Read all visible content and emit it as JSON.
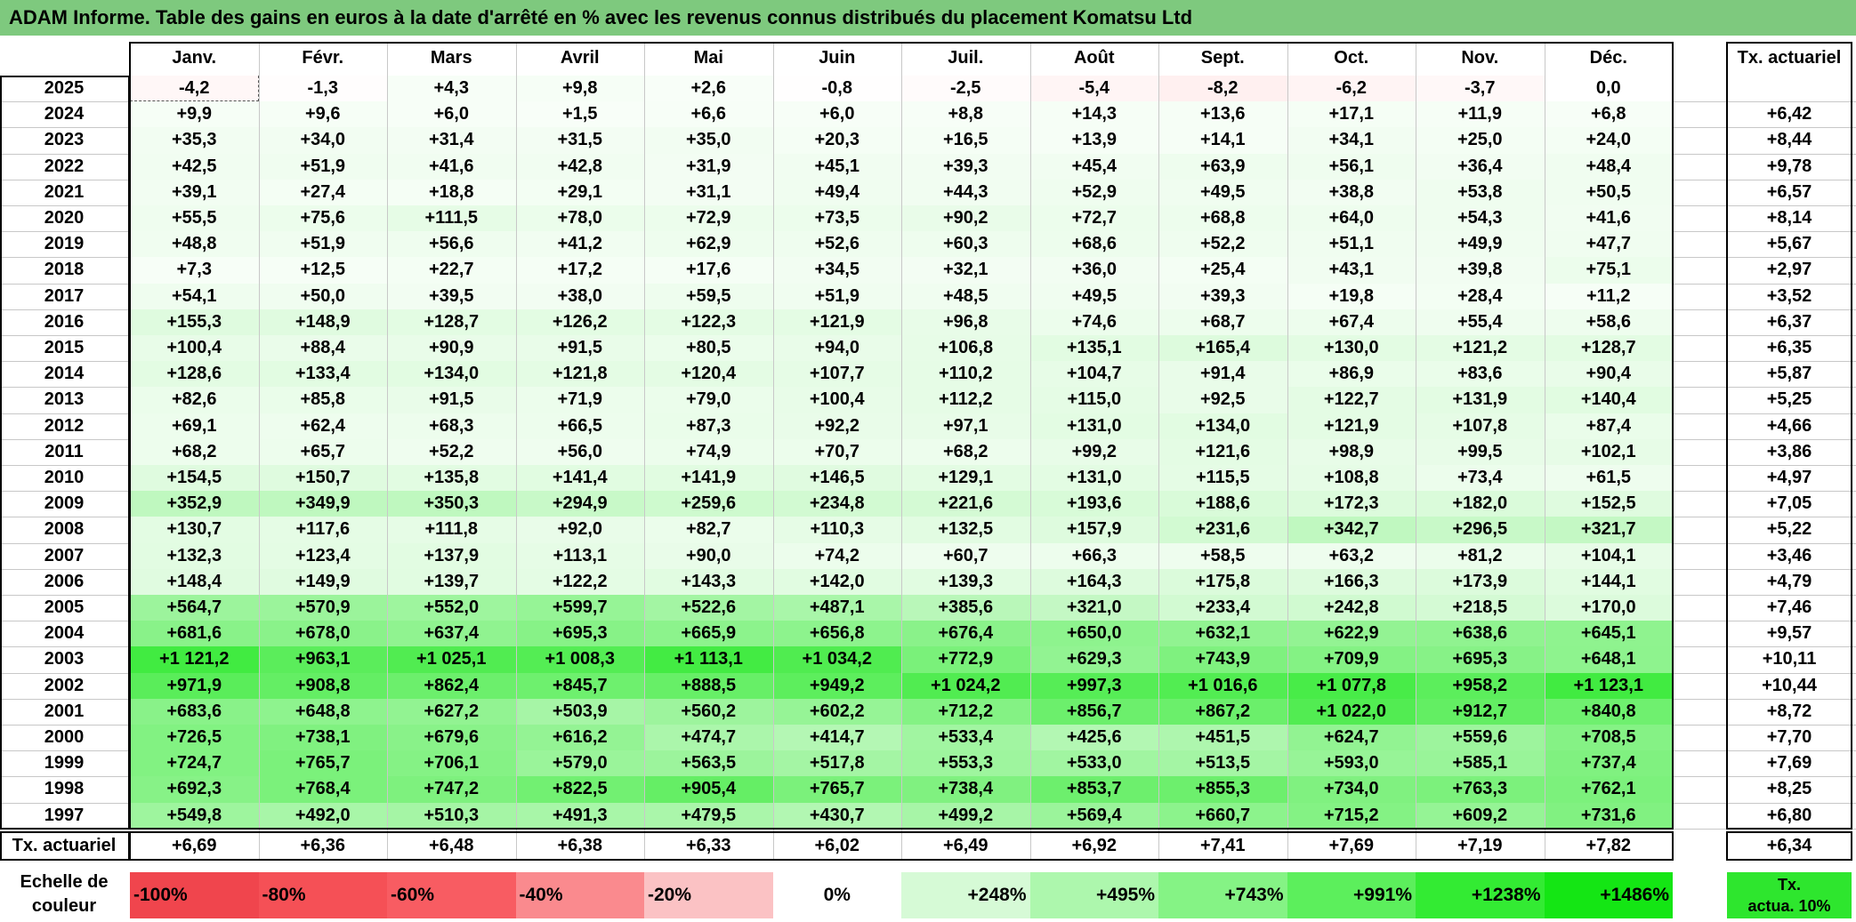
{
  "title": "ADAM Informe. Table des gains en euros à la date d'arrêté en % avec les revenus connus distribués du placement Komatsu Ltd",
  "months": [
    "Janv.",
    "Févr.",
    "Mars",
    "Avril",
    "Mai",
    "Juin",
    "Juil.",
    "Août",
    "Sept.",
    "Oct.",
    "Nov.",
    "Déc."
  ],
  "rate_header": "Tx. actuariel",
  "rows": [
    {
      "year": "2025",
      "values": [
        "-4,2",
        "-1,3",
        "+4,3",
        "+9,8",
        "+2,6",
        "-0,8",
        "-2,5",
        "-5,4",
        "-8,2",
        "-6,2",
        "-3,7",
        "0,0"
      ],
      "rate": ""
    },
    {
      "year": "2024",
      "values": [
        "+9,9",
        "+9,6",
        "+6,0",
        "+1,5",
        "+6,6",
        "+6,0",
        "+8,8",
        "+14,3",
        "+13,6",
        "+17,1",
        "+11,9",
        "+6,8"
      ],
      "rate": "+6,42"
    },
    {
      "year": "2023",
      "values": [
        "+35,3",
        "+34,0",
        "+31,4",
        "+31,5",
        "+35,0",
        "+20,3",
        "+16,5",
        "+13,9",
        "+14,1",
        "+34,1",
        "+25,0",
        "+24,0"
      ],
      "rate": "+8,44"
    },
    {
      "year": "2022",
      "values": [
        "+42,5",
        "+51,9",
        "+41,6",
        "+42,8",
        "+31,9",
        "+45,1",
        "+39,3",
        "+45,4",
        "+63,9",
        "+56,1",
        "+36,4",
        "+48,4"
      ],
      "rate": "+9,78"
    },
    {
      "year": "2021",
      "values": [
        "+39,1",
        "+27,4",
        "+18,8",
        "+29,1",
        "+31,1",
        "+49,4",
        "+44,3",
        "+52,9",
        "+49,5",
        "+38,8",
        "+53,8",
        "+50,5"
      ],
      "rate": "+6,57"
    },
    {
      "year": "2020",
      "values": [
        "+55,5",
        "+75,6",
        "+111,5",
        "+78,0",
        "+72,9",
        "+73,5",
        "+90,2",
        "+72,7",
        "+68,8",
        "+64,0",
        "+54,3",
        "+41,6"
      ],
      "rate": "+8,14"
    },
    {
      "year": "2019",
      "values": [
        "+48,8",
        "+51,9",
        "+56,6",
        "+41,2",
        "+62,9",
        "+52,6",
        "+60,3",
        "+68,6",
        "+52,2",
        "+51,1",
        "+49,9",
        "+47,7"
      ],
      "rate": "+5,67"
    },
    {
      "year": "2018",
      "values": [
        "+7,3",
        "+12,5",
        "+22,7",
        "+17,2",
        "+17,6",
        "+34,5",
        "+32,1",
        "+36,0",
        "+25,4",
        "+43,1",
        "+39,8",
        "+75,1"
      ],
      "rate": "+2,97"
    },
    {
      "year": "2017",
      "values": [
        "+54,1",
        "+50,0",
        "+39,5",
        "+38,0",
        "+59,5",
        "+51,9",
        "+48,5",
        "+49,5",
        "+39,3",
        "+19,8",
        "+28,4",
        "+11,2"
      ],
      "rate": "+3,52"
    },
    {
      "year": "2016",
      "values": [
        "+155,3",
        "+148,9",
        "+128,7",
        "+126,2",
        "+122,3",
        "+121,9",
        "+96,8",
        "+74,6",
        "+68,7",
        "+67,4",
        "+55,4",
        "+58,6"
      ],
      "rate": "+6,37"
    },
    {
      "year": "2015",
      "values": [
        "+100,4",
        "+88,4",
        "+90,9",
        "+91,5",
        "+80,5",
        "+94,0",
        "+106,8",
        "+135,1",
        "+165,4",
        "+130,0",
        "+121,2",
        "+128,7"
      ],
      "rate": "+6,35"
    },
    {
      "year": "2014",
      "values": [
        "+128,6",
        "+133,4",
        "+134,0",
        "+121,8",
        "+120,4",
        "+107,7",
        "+110,2",
        "+104,7",
        "+91,4",
        "+86,9",
        "+83,6",
        "+90,4"
      ],
      "rate": "+5,87"
    },
    {
      "year": "2013",
      "values": [
        "+82,6",
        "+85,8",
        "+91,5",
        "+71,9",
        "+79,0",
        "+100,4",
        "+112,2",
        "+115,0",
        "+92,5",
        "+122,7",
        "+131,9",
        "+140,4"
      ],
      "rate": "+5,25"
    },
    {
      "year": "2012",
      "values": [
        "+69,1",
        "+62,4",
        "+68,3",
        "+66,5",
        "+87,3",
        "+92,2",
        "+97,1",
        "+131,0",
        "+134,0",
        "+121,9",
        "+107,8",
        "+87,4"
      ],
      "rate": "+4,66"
    },
    {
      "year": "2011",
      "values": [
        "+68,2",
        "+65,7",
        "+52,2",
        "+56,0",
        "+74,9",
        "+70,7",
        "+68,2",
        "+99,2",
        "+121,6",
        "+98,9",
        "+99,5",
        "+102,1"
      ],
      "rate": "+3,86"
    },
    {
      "year": "2010",
      "values": [
        "+154,5",
        "+150,7",
        "+135,8",
        "+141,4",
        "+141,9",
        "+146,5",
        "+129,1",
        "+131,0",
        "+115,5",
        "+108,8",
        "+73,4",
        "+61,5"
      ],
      "rate": "+4,97"
    },
    {
      "year": "2009",
      "values": [
        "+352,9",
        "+349,9",
        "+350,3",
        "+294,9",
        "+259,6",
        "+234,8",
        "+221,6",
        "+193,6",
        "+188,6",
        "+172,3",
        "+182,0",
        "+152,5"
      ],
      "rate": "+7,05"
    },
    {
      "year": "2008",
      "values": [
        "+130,7",
        "+117,6",
        "+111,8",
        "+92,0",
        "+82,7",
        "+110,3",
        "+132,5",
        "+157,9",
        "+231,6",
        "+342,7",
        "+296,5",
        "+321,7"
      ],
      "rate": "+5,22"
    },
    {
      "year": "2007",
      "values": [
        "+132,3",
        "+123,4",
        "+137,9",
        "+113,1",
        "+90,0",
        "+74,2",
        "+60,7",
        "+66,3",
        "+58,5",
        "+63,2",
        "+81,2",
        "+104,1"
      ],
      "rate": "+3,46"
    },
    {
      "year": "2006",
      "values": [
        "+148,4",
        "+149,9",
        "+139,7",
        "+122,2",
        "+143,3",
        "+142,0",
        "+139,3",
        "+164,3",
        "+175,8",
        "+166,3",
        "+173,9",
        "+144,1"
      ],
      "rate": "+4,79"
    },
    {
      "year": "2005",
      "values": [
        "+564,7",
        "+570,9",
        "+552,0",
        "+599,7",
        "+522,6",
        "+487,1",
        "+385,6",
        "+321,0",
        "+233,4",
        "+242,8",
        "+218,5",
        "+170,0"
      ],
      "rate": "+7,46"
    },
    {
      "year": "2004",
      "values": [
        "+681,6",
        "+678,0",
        "+637,4",
        "+695,3",
        "+665,9",
        "+656,8",
        "+676,4",
        "+650,0",
        "+632,1",
        "+622,9",
        "+638,6",
        "+645,1"
      ],
      "rate": "+9,57"
    },
    {
      "year": "2003",
      "values": [
        "+1 121,2",
        "+963,1",
        "+1 025,1",
        "+1 008,3",
        "+1 113,1",
        "+1 034,2",
        "+772,9",
        "+629,3",
        "+743,9",
        "+709,9",
        "+695,3",
        "+648,1"
      ],
      "rate": "+10,11"
    },
    {
      "year": "2002",
      "values": [
        "+971,9",
        "+908,8",
        "+862,4",
        "+845,7",
        "+888,5",
        "+949,2",
        "+1 024,2",
        "+997,3",
        "+1 016,6",
        "+1 077,8",
        "+958,2",
        "+1 123,1"
      ],
      "rate": "+10,44"
    },
    {
      "year": "2001",
      "values": [
        "+683,6",
        "+648,8",
        "+627,2",
        "+503,9",
        "+560,2",
        "+602,2",
        "+712,2",
        "+856,7",
        "+867,2",
        "+1 022,0",
        "+912,7",
        "+840,8"
      ],
      "rate": "+8,72"
    },
    {
      "year": "2000",
      "values": [
        "+726,5",
        "+738,1",
        "+679,6",
        "+616,2",
        "+474,7",
        "+414,7",
        "+533,4",
        "+425,6",
        "+451,5",
        "+624,7",
        "+559,6",
        "+708,5"
      ],
      "rate": "+7,70"
    },
    {
      "year": "1999",
      "values": [
        "+724,7",
        "+765,7",
        "+706,1",
        "+579,0",
        "+563,5",
        "+517,8",
        "+553,3",
        "+533,0",
        "+513,5",
        "+593,0",
        "+585,1",
        "+737,4"
      ],
      "rate": "+7,69"
    },
    {
      "year": "1998",
      "values": [
        "+692,3",
        "+768,4",
        "+747,2",
        "+822,5",
        "+905,4",
        "+765,7",
        "+738,4",
        "+853,7",
        "+855,3",
        "+734,0",
        "+763,3",
        "+762,1"
      ],
      "rate": "+8,25"
    },
    {
      "year": "1997",
      "values": [
        "+549,8",
        "+492,0",
        "+510,3",
        "+491,3",
        "+479,5",
        "+430,7",
        "+499,2",
        "+569,4",
        "+660,7",
        "+715,2",
        "+609,2",
        "+731,6"
      ],
      "rate": "+6,80"
    }
  ],
  "footer": {
    "label": "Tx. actuariel",
    "values": [
      "+6,69",
      "+6,36",
      "+6,48",
      "+6,38",
      "+6,33",
      "+6,02",
      "+6,49",
      "+6,92",
      "+7,41",
      "+7,69",
      "+7,19",
      "+7,82"
    ],
    "rate": "+6,34"
  },
  "legend": {
    "label_line1": "Echelle de",
    "label_line2": "couleur",
    "items": [
      {
        "text": "-100%",
        "color": "#f0454d"
      },
      {
        "text": "-80%",
        "color": "#f55056"
      },
      {
        "text": "-60%",
        "color": "#f85c62"
      },
      {
        "text": "-40%",
        "color": "#fa8a8e"
      },
      {
        "text": "-20%",
        "color": "#fbc2c4"
      },
      {
        "text": "0%",
        "color": "#ffffff"
      },
      {
        "text": "+248%",
        "color": "#d6fad6"
      },
      {
        "text": "+495%",
        "color": "#adf7ad"
      },
      {
        "text": "+743%",
        "color": "#85f385"
      },
      {
        "text": "+991%",
        "color": "#5cef5c"
      },
      {
        "text": "+1238%",
        "color": "#33eb33"
      },
      {
        "text": "+1486%",
        "color": "#14e614"
      }
    ],
    "right_line1": "Tx.",
    "right_line2": "actua. 10%",
    "right_color": "#2ee62e"
  }
}
